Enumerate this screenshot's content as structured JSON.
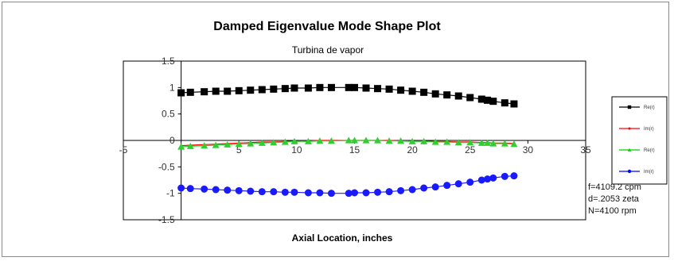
{
  "chart_data": {
    "type": "scatter",
    "title": "Damped Eigenvalue Mode Shape Plot",
    "subtitle": "Turbina de vapor",
    "xlabel": "Axial Location, inches",
    "ylabel": "",
    "xlim": [
      -5,
      35
    ],
    "ylim": [
      -1.5,
      1.5
    ],
    "x_ticks": [
      "-5",
      "5",
      "10",
      "15",
      "20",
      "25",
      "30",
      "35"
    ],
    "y_ticks": [
      "1.5",
      "1",
      "0.5",
      "0",
      "-0.5",
      "-1",
      "-1.5"
    ],
    "grid": false,
    "legend_position": "right",
    "legend": [
      {
        "label": "Re(r)",
        "color": "#000000"
      },
      {
        "label": "Im(r)",
        "color": "#ff0000"
      },
      {
        "label": "Re(r)",
        "color": "#00cc00"
      },
      {
        "label": "Im(r)",
        "color": "#0000ff"
      }
    ],
    "x": [
      0,
      0.8,
      2,
      3,
      4,
      5,
      6,
      7,
      8,
      9,
      9.8,
      11,
      12,
      13,
      14.5,
      15,
      16,
      17,
      18,
      19,
      20,
      21,
      22,
      23,
      24,
      25,
      26,
      26.5,
      27,
      28,
      28.8
    ],
    "series": [
      {
        "name": "Re(r)",
        "color": "#000000",
        "marker": "square",
        "values": [
          0.9,
          0.91,
          0.92,
          0.93,
          0.93,
          0.94,
          0.95,
          0.96,
          0.97,
          0.98,
          0.99,
          0.99,
          1.0,
          1.0,
          1.0,
          1.0,
          0.99,
          0.98,
          0.97,
          0.95,
          0.93,
          0.91,
          0.88,
          0.86,
          0.84,
          0.81,
          0.78,
          0.76,
          0.74,
          0.71,
          0.69
        ]
      },
      {
        "name": "Im(r)",
        "color": "#ff0000",
        "marker": "none",
        "values": [
          -0.1,
          -0.09,
          -0.08,
          -0.07,
          -0.06,
          -0.05,
          -0.04,
          -0.03,
          -0.03,
          -0.02,
          -0.01,
          -0.01,
          0.0,
          0.0,
          0.0,
          0.0,
          0.0,
          0.0,
          0.0,
          -0.01,
          -0.01,
          -0.01,
          -0.02,
          -0.02,
          -0.03,
          -0.03,
          -0.04,
          -0.04,
          -0.05,
          -0.05,
          -0.06
        ]
      },
      {
        "name": "Re(r)",
        "color": "#33cc33",
        "marker": "triangle",
        "values": [
          -0.12,
          -0.11,
          -0.1,
          -0.09,
          -0.08,
          -0.07,
          -0.06,
          -0.05,
          -0.04,
          -0.03,
          -0.02,
          -0.02,
          -0.01,
          -0.01,
          0.0,
          0.0,
          0.0,
          0.0,
          -0.01,
          -0.01,
          -0.02,
          -0.02,
          -0.03,
          -0.03,
          -0.04,
          -0.04,
          -0.05,
          -0.05,
          -0.06,
          -0.06,
          -0.07
        ]
      },
      {
        "name": "Im(r)",
        "color": "#1a1aff",
        "marker": "circle",
        "values": [
          -0.9,
          -0.91,
          -0.92,
          -0.93,
          -0.94,
          -0.95,
          -0.96,
          -0.97,
          -0.97,
          -0.98,
          -0.98,
          -0.99,
          -0.99,
          -1.0,
          -1.0,
          -0.99,
          -0.99,
          -0.98,
          -0.97,
          -0.95,
          -0.93,
          -0.9,
          -0.88,
          -0.85,
          -0.82,
          -0.79,
          -0.75,
          -0.73,
          -0.71,
          -0.68,
          -0.67
        ]
      }
    ],
    "annotations": [
      "f=4109.2 cpm",
      "d=.2053 zeta",
      "N=4100 rpm"
    ]
  }
}
